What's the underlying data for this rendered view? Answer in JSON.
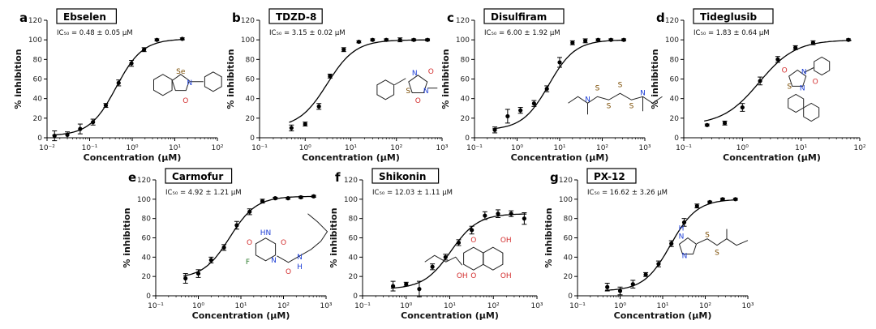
{
  "chart_data": [
    {
      "panel": "a",
      "type": "scatter",
      "name": "Ebselen",
      "ic50": "IC₅₀ = 0.48 ± 0.05 μM",
      "xlabel": "Concentration (μM)",
      "ylabel": "% inhibition",
      "xscale": "log",
      "xlim": [
        0.01,
        100
      ],
      "ylim": [
        0,
        120
      ],
      "xticks": [
        "10⁻²",
        "10⁻¹",
        "10⁰",
        "10¹",
        "10²"
      ],
      "yticks": [
        "0",
        "20",
        "40",
        "60",
        "80",
        "100",
        "120"
      ],
      "x": [
        0.015,
        0.03,
        0.06,
        0.12,
        0.24,
        0.48,
        0.96,
        1.9,
        3.8,
        15
      ],
      "y": [
        2,
        3,
        9,
        16,
        33,
        56,
        76,
        90,
        100,
        101
      ],
      "err": [
        5,
        3,
        5,
        3,
        2,
        3,
        3,
        2,
        1,
        1
      ],
      "structure": {
        "atoms": [
          "Se",
          "N",
          "O"
        ]
      }
    },
    {
      "panel": "b",
      "type": "scatter",
      "name": "TDZD-8",
      "ic50": "IC₅₀ = 3.15 ± 0.02 μM",
      "xlabel": "Concentration (μM)",
      "ylabel": "% inhibition",
      "xscale": "log",
      "xlim": [
        0.1,
        1000
      ],
      "ylim": [
        0,
        120
      ],
      "xticks": [
        "10⁻¹",
        "10⁰",
        "10¹",
        "10²",
        "10³"
      ],
      "yticks": [
        "0",
        "20",
        "40",
        "60",
        "80",
        "100",
        "120"
      ],
      "x": [
        0.5,
        1,
        2,
        3.5,
        7,
        15,
        30,
        60,
        120,
        240,
        480
      ],
      "y": [
        10,
        14,
        32,
        63,
        90,
        98,
        100,
        100,
        100,
        100,
        100
      ],
      "err": [
        3,
        2,
        3,
        2,
        2,
        1,
        1,
        1,
        2,
        1,
        1
      ],
      "structure": {
        "atoms": [
          "N",
          "O",
          "O",
          "S",
          "N"
        ]
      }
    },
    {
      "panel": "c",
      "type": "scatter",
      "name": "Disulfiram",
      "ic50": "IC₅₀ = 6.00 ± 1.92 μM",
      "xlabel": "Concentration (μM)",
      "ylabel": "% inhibition",
      "xscale": "log",
      "xlim": [
        0.1,
        1000
      ],
      "ylim": [
        0,
        120
      ],
      "xticks": [
        "10⁻¹",
        "10⁰",
        "10¹",
        "10²",
        "10³"
      ],
      "yticks": [
        "0",
        "20",
        "40",
        "60",
        "80",
        "100",
        "120"
      ],
      "x": [
        0.3,
        0.6,
        1.2,
        2.5,
        5,
        10,
        20,
        40,
        80,
        160,
        320
      ],
      "y": [
        8,
        22,
        28,
        35,
        50,
        77,
        97,
        99,
        100,
        100,
        100
      ],
      "err": [
        3,
        7,
        3,
        3,
        3,
        5,
        2,
        2,
        1,
        1,
        1
      ],
      "structure": {
        "atoms": [
          "S",
          "S",
          "S",
          "S",
          "N",
          "N"
        ]
      }
    },
    {
      "panel": "d",
      "type": "scatter",
      "name": "Tideglusib",
      "ic50": "IC₅₀ = 1.83 ± 0.64 μM",
      "xlabel": "Concentration (μM)",
      "ylabel": "% inhibition",
      "xscale": "log",
      "xlim": [
        0.1,
        100
      ],
      "ylim": [
        0,
        120
      ],
      "xticks": [
        "10⁻¹",
        "10⁰",
        "10¹",
        "10²"
      ],
      "yticks": [
        "0",
        "20",
        "40",
        "60",
        "80",
        "100",
        "120"
      ],
      "x": [
        0.25,
        0.5,
        1,
        2,
        4,
        8,
        16,
        64
      ],
      "y": [
        13,
        15,
        31,
        58,
        80,
        92,
        97,
        100
      ],
      "err": [
        1,
        2,
        4,
        4,
        3,
        2,
        2,
        1
      ],
      "structure": {
        "atoms": [
          "O",
          "N",
          "S",
          "N",
          "O"
        ]
      }
    },
    {
      "panel": "e",
      "type": "scatter",
      "name": "Carmofur",
      "ic50": "IC₅₀ = 4.92 ± 1.21 μM",
      "xlabel": "Concentration (μM)",
      "ylabel": "% inhibition",
      "xscale": "log",
      "xlim": [
        0.1,
        1000
      ],
      "ylim": [
        0,
        120
      ],
      "xticks": [
        "10⁻¹",
        "10⁰",
        "10¹",
        "10²",
        "10³"
      ],
      "yticks": [
        "0",
        "20",
        "40",
        "60",
        "80",
        "100",
        "120"
      ],
      "x": [
        0.5,
        1,
        2,
        4,
        8,
        16,
        32,
        64,
        128,
        256,
        512
      ],
      "y": [
        18,
        23,
        37,
        50,
        73,
        87,
        98,
        101,
        101,
        102,
        103
      ],
      "err": [
        5,
        4,
        3,
        3,
        4,
        3,
        2,
        1,
        1,
        1,
        1
      ],
      "structure": {
        "atoms": [
          "HN",
          "O",
          "O",
          "F",
          "N",
          "N",
          "H",
          "O"
        ]
      }
    },
    {
      "panel": "f",
      "type": "scatter",
      "name": "Shikonin",
      "ic50": "IC₅₀ = 12.03 ± 1.11 μM",
      "xlabel": "Concentration (μM)",
      "ylabel": "% inhibition",
      "xscale": "log",
      "xlim": [
        0.1,
        1000
      ],
      "ylim": [
        0,
        120
      ],
      "xticks": [
        "10⁻¹",
        "10⁰",
        "10¹",
        "10²",
        "10³"
      ],
      "yticks": [
        "0",
        "20",
        "40",
        "60",
        "80",
        "100",
        "120"
      ],
      "x": [
        0.5,
        1,
        2,
        4,
        8,
        16,
        32,
        64,
        128,
        256,
        512
      ],
      "y": [
        10,
        12,
        7,
        30,
        40,
        55,
        68,
        83,
        85,
        85,
        80
      ],
      "err": [
        5,
        2,
        8,
        3,
        3,
        3,
        4,
        4,
        4,
        3,
        6
      ],
      "structure": {
        "atoms": [
          "O",
          "OH",
          "OH",
          "OH",
          "O",
          "OH"
        ]
      }
    },
    {
      "panel": "g",
      "type": "scatter",
      "name": "PX-12",
      "ic50": "IC₅₀ = 16.62 ± 3.26 μM",
      "xlabel": "Concentration (μM)",
      "ylabel": "% inhibition",
      "xscale": "log",
      "xlim": [
        0.1,
        1000
      ],
      "ylim": [
        0,
        120
      ],
      "xticks": [
        "10⁻¹",
        "10⁰",
        "10¹",
        "10²",
        "10³"
      ],
      "yticks": [
        "0",
        "20",
        "40",
        "60",
        "80",
        "100",
        "120"
      ],
      "x": [
        0.5,
        1,
        2,
        4,
        8,
        16,
        32,
        64,
        128,
        256,
        512
      ],
      "y": [
        9,
        5,
        12,
        22,
        33,
        54,
        76,
        93,
        97,
        100,
        100
      ],
      "err": [
        4,
        4,
        4,
        2,
        3,
        3,
        4,
        2,
        1,
        1,
        1
      ],
      "structure": {
        "atoms": [
          "N",
          "H",
          "N",
          "S",
          "S"
        ]
      }
    }
  ],
  "colors": {
    "axis": "#000000",
    "data": "#000000",
    "heteroatom": "#d32f2f",
    "nitrogen": "#1e3fd6"
  }
}
